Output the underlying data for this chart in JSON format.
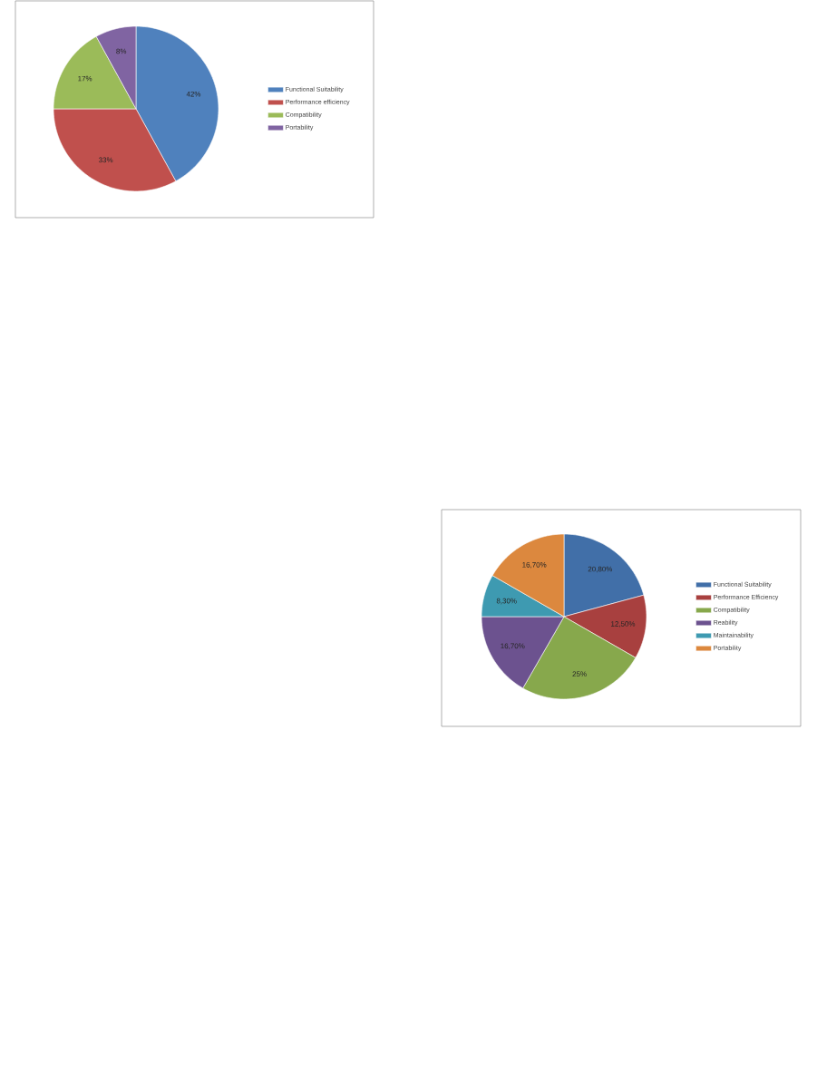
{
  "chart_data": [
    {
      "type": "pie",
      "categories": [
        "Functional Suitability",
        "Performance efficiency",
        "Compatibility",
        "Portability"
      ],
      "values": [
        42,
        33,
        17,
        8
      ],
      "value_labels": [
        "42%",
        "33%",
        "17%",
        "8%"
      ],
      "colors": [
        "#4f81bd",
        "#c0504d",
        "#9bbb59",
        "#8064a2"
      ],
      "legend": "right"
    },
    {
      "type": "pie",
      "categories": [
        "Functional Suitability",
        "Performance Efficiency",
        "Compatibility",
        "Reability",
        "Maintainability",
        "Portability"
      ],
      "values": [
        20.8,
        12.5,
        25,
        16.7,
        8.3,
        16.7
      ],
      "value_labels": [
        "20,80%",
        "12,50%",
        "25%",
        "16,70%",
        "8,30%",
        "16,70%"
      ],
      "colors": [
        "#416fa8",
        "#a8403f",
        "#87a84c",
        "#6c528f",
        "#3e9ab1",
        "#dc883e"
      ],
      "legend": "right"
    }
  ]
}
